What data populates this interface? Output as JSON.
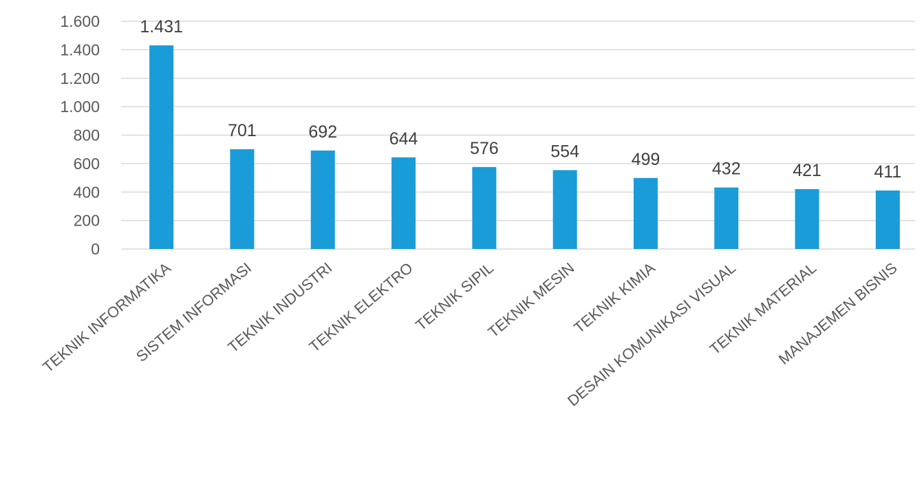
{
  "chart_data": {
    "type": "bar",
    "title": "",
    "xlabel": "",
    "ylabel": "",
    "categories": [
      "TEKNIK INFORMATIKA",
      "SISTEM INFORMASI",
      "TEKNIK INDUSTRI",
      "TEKNIK ELEKTRO",
      "TEKNIK SIPIL",
      "TEKNIK MESIN",
      "TEKNIK KIMIA",
      "DESAIN KOMUNIKASI VISUAL",
      "TEKNIK MATERIAL",
      "MANAJEMEN BISNIS"
    ],
    "values": [
      1431,
      701,
      692,
      644,
      576,
      554,
      499,
      432,
      421,
      411
    ],
    "data_labels": [
      "1.431",
      "701",
      "692",
      "644",
      "576",
      "554",
      "499",
      "432",
      "421",
      "411"
    ],
    "ylim": [
      0,
      1600
    ],
    "y_ticks": [
      {
        "value": 0,
        "label": "0"
      },
      {
        "value": 200,
        "label": "200"
      },
      {
        "value": 400,
        "label": "400"
      },
      {
        "value": 600,
        "label": "600"
      },
      {
        "value": 800,
        "label": "800"
      },
      {
        "value": 1000,
        "label": "1.000"
      },
      {
        "value": 1200,
        "label": "1.200"
      },
      {
        "value": 1400,
        "label": "1.400"
      },
      {
        "value": 1600,
        "label": "1.600"
      }
    ],
    "grid": true,
    "legend": "none",
    "colors": {
      "bar": "#1a9cd8",
      "grid": "#d9d9d9",
      "tick_text": "#595959",
      "label_text": "#404040"
    }
  }
}
